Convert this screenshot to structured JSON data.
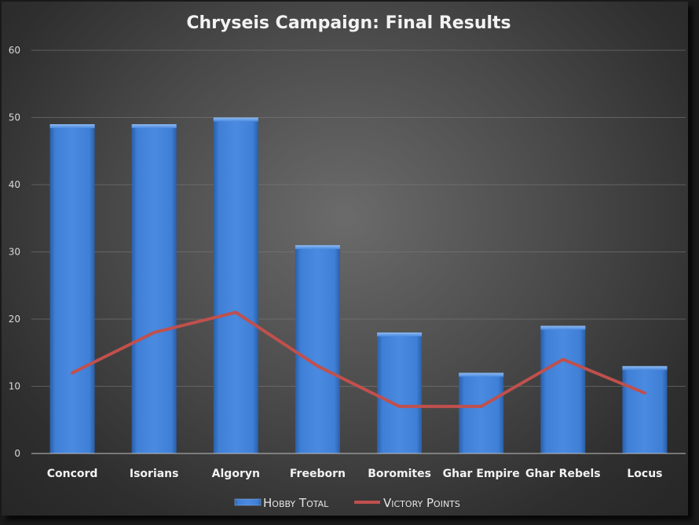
{
  "chart_data": {
    "type": "bar",
    "title": "Chryseis Campaign: Final Results",
    "xlabel": "",
    "ylabel": "",
    "ylim": [
      0,
      60
    ],
    "yticks": [
      0,
      10,
      20,
      30,
      40,
      50,
      60
    ],
    "grid": true,
    "legend_position": "bottom",
    "categories": [
      "Concord",
      "Isorians",
      "Algoryn",
      "Freeborn",
      "Boromites",
      "Ghar Empire",
      "Ghar Rebels",
      "Locus"
    ],
    "series": [
      {
        "name": "Hobby Total",
        "type": "bar",
        "color": "#3f7fd6",
        "values": [
          49,
          49,
          50,
          31,
          18,
          12,
          19,
          13
        ]
      },
      {
        "name": "Victory Points",
        "type": "line",
        "color": "#c0504d",
        "values": [
          12,
          18,
          21,
          13,
          7,
          7,
          14,
          9
        ]
      }
    ]
  }
}
